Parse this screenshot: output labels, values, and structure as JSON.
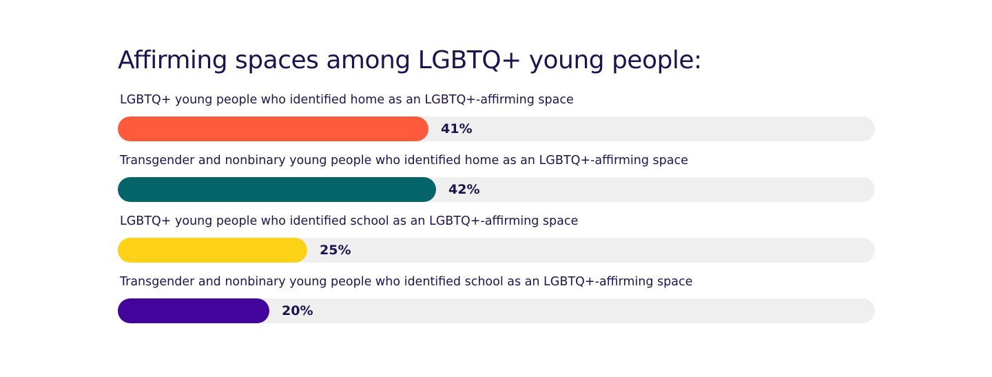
{
  "chart_data": {
    "type": "bar",
    "orientation": "horizontal",
    "title": "Affirming spaces among LGBTQ+ young people:",
    "value_suffix": "%",
    "xlim": [
      0,
      100
    ],
    "grid": false,
    "legend": "none",
    "track_color": "#efefef",
    "bars": [
      {
        "label": "LGBTQ+ young people who identified home as an LGBTQ+-affirming space",
        "value": 41,
        "value_label": "41%",
        "color": "#ff5a3c"
      },
      {
        "label": "Transgender and nonbinary young people who identified home as an LGBTQ+-affirming space",
        "value": 42,
        "value_label": "42%",
        "color": "#05646a"
      },
      {
        "label": "LGBTQ+ young people who identified school as an LGBTQ+-affirming space",
        "value": 25,
        "value_label": "25%",
        "color": "#fdd216"
      },
      {
        "label": "Transgender and nonbinary young people who identified school as an LGBTQ+-affirming space",
        "value": 20,
        "value_label": "20%",
        "color": "#42049b"
      }
    ]
  }
}
